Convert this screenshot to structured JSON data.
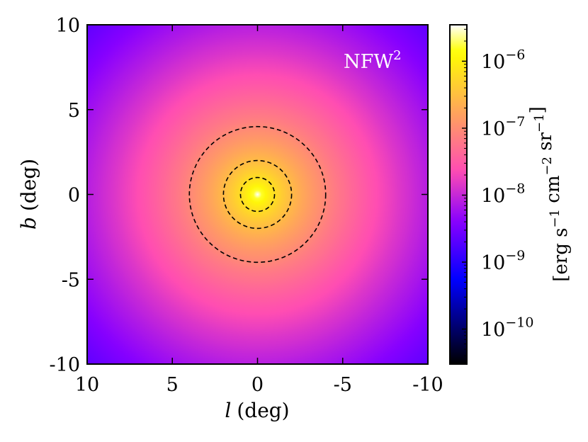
{
  "chart_data": {
    "type": "heatmap",
    "title": "",
    "annotation": {
      "text": "NFW",
      "superscript": "2",
      "position": "top-right"
    },
    "xlabel": {
      "var": "l",
      "unit": "(deg)"
    },
    "ylabel": {
      "var": "b",
      "unit": "(deg)"
    },
    "xlim": [
      10,
      -10
    ],
    "ylim": [
      -10,
      10
    ],
    "x_ticks": [
      10,
      5,
      0,
      -5,
      -10
    ],
    "x_tick_labels": [
      "10",
      "5",
      "0",
      "-5",
      "-10"
    ],
    "y_ticks": [
      10,
      5,
      0,
      -5,
      -10
    ],
    "y_tick_labels": [
      "10",
      "5",
      "0",
      "-5",
      "-10"
    ],
    "grid": false,
    "colormap": "gnuplot2",
    "colorbar": {
      "scale": "log",
      "range": [
        3e-11,
        3.5e-06
      ],
      "ticks": [
        1e-10,
        1e-09,
        1e-08,
        1e-07,
        1e-06
      ],
      "tick_labels": [
        {
          "base": "10",
          "exp": "−10"
        },
        {
          "base": "10",
          "exp": "−9"
        },
        {
          "base": "10",
          "exp": "−8"
        },
        {
          "base": "10",
          "exp": "−7"
        },
        {
          "base": "10",
          "exp": "−6"
        }
      ],
      "label_parts": [
        {
          "text": "[erg s",
          "sup": "−1"
        },
        {
          "text": " cm",
          "sup": "−2"
        },
        {
          "text": " sr",
          "sup": "−1"
        },
        {
          "text": "]",
          "sup": ""
        }
      ]
    },
    "field": {
      "profile": "NFW squared",
      "center": [
        0,
        0
      ],
      "peak_value": 3.5e-06,
      "edge_value": 2e-09
    },
    "contours": [
      {
        "center": [
          0,
          0
        ],
        "radius": 1,
        "style": "dashed",
        "color": "#000000"
      },
      {
        "center": [
          0,
          0
        ],
        "radius": 2,
        "style": "dashed",
        "color": "#000000"
      },
      {
        "center": [
          0,
          0
        ],
        "radius": 4,
        "style": "dashed",
        "color": "#000000"
      }
    ]
  }
}
